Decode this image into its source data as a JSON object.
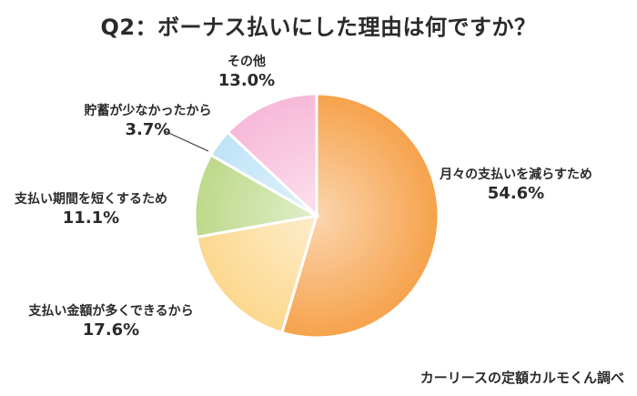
{
  "chart_data": {
    "type": "pie",
    "title": "Q2：ボーナス払いにした理由は何ですか？",
    "slices": [
      {
        "label": "月々の支払いを減らすため",
        "value": 54.6,
        "value_text": "54.6%",
        "color": "#f6a24b"
      },
      {
        "label": "支払い金額が多くできるから",
        "value": 17.6,
        "value_text": "17.6%",
        "color": "#fcd88e"
      },
      {
        "label": "支払い期間を短くするため",
        "value": 11.1,
        "value_text": "11.1%",
        "color": "#bdd98a"
      },
      {
        "label": "貯蓄が少なかったから",
        "value": 3.7,
        "value_text": "3.7%",
        "color": "#bfe3f7"
      },
      {
        "label": "その他",
        "value": 13.0,
        "value_text": "13.0%",
        "color": "#f7b9d8"
      }
    ],
    "start": "12 o'clock",
    "direction": "clockwise",
    "legend": "none"
  },
  "source": "カーリースの定額カルモくん調べ"
}
